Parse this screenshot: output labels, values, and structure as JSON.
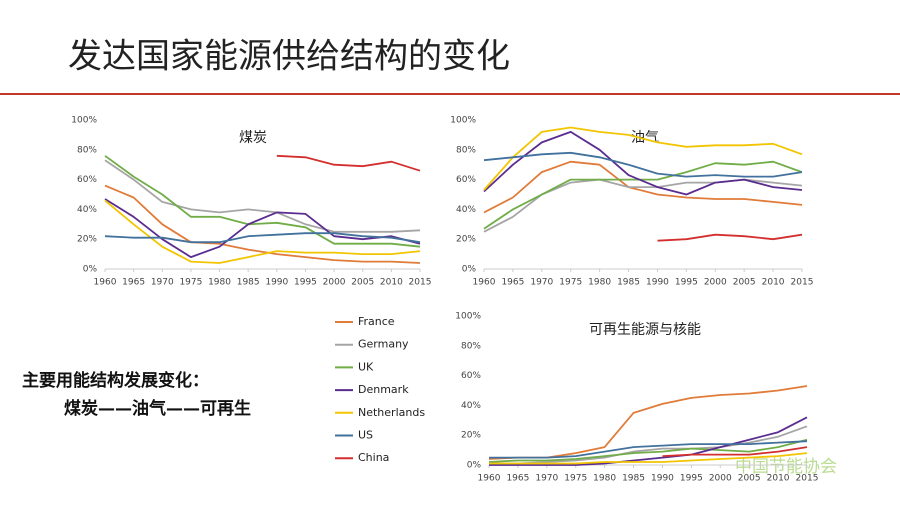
{
  "title": "发达国家能源供给结构的变化",
  "summary": [
    "主要用能结构发展变化：",
    "煤炭——油气——可再生"
  ],
  "watermark": "中国节能协会",
  "chart_data": [
    {
      "type": "line",
      "title": "煤炭",
      "x": [
        1960,
        1965,
        1970,
        1975,
        1980,
        1985,
        1990,
        1995,
        2000,
        2005,
        2010,
        2015
      ],
      "xlim": [
        1960,
        2015
      ],
      "xticks": [
        1960,
        1965,
        1970,
        1975,
        1980,
        1985,
        1990,
        1995,
        2000,
        2005,
        2010,
        2015
      ],
      "ylim": [
        0,
        100
      ],
      "yticks": [
        {
          "value": 0,
          "label": "0%"
        },
        {
          "value": 20,
          "label": "20%"
        },
        {
          "value": 40,
          "label": "40%"
        },
        {
          "value": 60,
          "label": "60%"
        },
        {
          "value": 80,
          "label": "80%"
        },
        {
          "value": 100,
          "label": "100%"
        }
      ],
      "grid": false,
      "series": [
        {
          "name": "France",
          "color": "#e07b39",
          "values": [
            56,
            48,
            30,
            18,
            17,
            13,
            10,
            8,
            6,
            5,
            5,
            4
          ]
        },
        {
          "name": "Germany",
          "color": "#a5a5a5",
          "values": [
            73,
            60,
            45,
            40,
            38,
            40,
            38,
            30,
            25,
            25,
            25,
            26
          ]
        },
        {
          "name": "UK",
          "color": "#70ad47",
          "values": [
            76,
            62,
            50,
            35,
            35,
            30,
            31,
            28,
            17,
            17,
            17,
            15
          ]
        },
        {
          "name": "Denmark",
          "color": "#5b2c8f",
          "values": [
            47,
            35,
            20,
            8,
            15,
            30,
            38,
            37,
            22,
            20,
            22,
            17
          ]
        },
        {
          "name": "Netherlands",
          "color": "#f2c500",
          "values": [
            46,
            30,
            15,
            5,
            4,
            8,
            12,
            11,
            11,
            10,
            10,
            12
          ]
        },
        {
          "name": "US",
          "color": "#41719c",
          "values": [
            22,
            21,
            21,
            18,
            18,
            22,
            23,
            24,
            24,
            22,
            21,
            18
          ]
        },
        {
          "name": "China",
          "color": "#d32f2f",
          "values": [
            null,
            null,
            null,
            null,
            null,
            null,
            76,
            75,
            70,
            69,
            72,
            66
          ]
        }
      ]
    },
    {
      "type": "line",
      "title": "油气",
      "x": [
        1960,
        1965,
        1970,
        1975,
        1980,
        1985,
        1990,
        1995,
        2000,
        2005,
        2010,
        2015
      ],
      "xlim": [
        1960,
        2015
      ],
      "xticks": [
        1960,
        1965,
        1970,
        1975,
        1980,
        1985,
        1990,
        1995,
        2000,
        2005,
        2010,
        2015
      ],
      "ylim": [
        0,
        100
      ],
      "yticks": [
        {
          "value": 0,
          "label": "0%"
        },
        {
          "value": 20,
          "label": "20%"
        },
        {
          "value": 40,
          "label": "40%"
        },
        {
          "value": 60,
          "label": "60%"
        },
        {
          "value": 80,
          "label": "80%"
        },
        {
          "value": 100,
          "label": "100%"
        }
      ],
      "grid": false,
      "series": [
        {
          "name": "France",
          "color": "#e07b39",
          "values": [
            38,
            48,
            65,
            72,
            70,
            55,
            50,
            48,
            47,
            47,
            45,
            43
          ]
        },
        {
          "name": "Germany",
          "color": "#a5a5a5",
          "values": [
            25,
            35,
            50,
            58,
            60,
            55,
            55,
            58,
            58,
            60,
            58,
            56
          ]
        },
        {
          "name": "UK",
          "color": "#70ad47",
          "values": [
            27,
            40,
            50,
            60,
            60,
            60,
            60,
            65,
            71,
            70,
            72,
            65
          ]
        },
        {
          "name": "Denmark",
          "color": "#5b2c8f",
          "values": [
            52,
            70,
            85,
            92,
            80,
            63,
            55,
            50,
            58,
            60,
            55,
            53
          ]
        },
        {
          "name": "Netherlands",
          "color": "#f2c500",
          "values": [
            53,
            75,
            92,
            95,
            92,
            90,
            85,
            82,
            83,
            83,
            84,
            77
          ]
        },
        {
          "name": "US",
          "color": "#41719c",
          "values": [
            73,
            75,
            77,
            78,
            75,
            70,
            64,
            62,
            63,
            62,
            62,
            65
          ]
        },
        {
          "name": "China",
          "color": "#d32f2f",
          "values": [
            null,
            null,
            null,
            null,
            null,
            null,
            19,
            20,
            23,
            22,
            20,
            23
          ]
        }
      ]
    },
    {
      "type": "line",
      "title": "可再生能源与核能",
      "x": [
        1960,
        1965,
        1970,
        1975,
        1980,
        1985,
        1990,
        1995,
        2000,
        2005,
        2010,
        2015
      ],
      "xlim": [
        1960,
        2015
      ],
      "xticks": [
        1960,
        1965,
        1970,
        1975,
        1980,
        1985,
        1990,
        1995,
        2000,
        2005,
        2010,
        2015
      ],
      "ylim": [
        0,
        100
      ],
      "yticks": [
        {
          "value": 0,
          "label": "0%"
        },
        {
          "value": 20,
          "label": "20%"
        },
        {
          "value": 40,
          "label": "40%"
        },
        {
          "value": 60,
          "label": "60%"
        },
        {
          "value": 80,
          "label": "80%"
        },
        {
          "value": 100,
          "label": "100%"
        }
      ],
      "grid": false,
      "series": [
        {
          "name": "France",
          "color": "#e07b39",
          "values": [
            4,
            5,
            5,
            8,
            12,
            35,
            41,
            45,
            47,
            48,
            50,
            53
          ]
        },
        {
          "name": "Germany",
          "color": "#a5a5a5",
          "values": [
            1,
            1,
            2,
            3,
            5,
            9,
            11,
            11,
            12,
            15,
            19,
            26
          ]
        },
        {
          "name": "UK",
          "color": "#70ad47",
          "values": [
            2,
            3,
            3,
            4,
            6,
            8,
            9,
            11,
            10,
            9,
            12,
            17
          ]
        },
        {
          "name": "Denmark",
          "color": "#5b2c8f",
          "values": [
            0,
            0,
            0,
            0,
            1,
            3,
            5,
            7,
            12,
            17,
            22,
            32
          ]
        },
        {
          "name": "Netherlands",
          "color": "#f2c500",
          "values": [
            1,
            1,
            1,
            1,
            2,
            2,
            2,
            3,
            4,
            5,
            6,
            8
          ]
        },
        {
          "name": "US",
          "color": "#41719c",
          "values": [
            5,
            5,
            5,
            6,
            9,
            12,
            13,
            14,
            14,
            14,
            15,
            16
          ]
        },
        {
          "name": "China",
          "color": "#d32f2f",
          "values": [
            null,
            null,
            null,
            null,
            null,
            null,
            6,
            7,
            7,
            7,
            9,
            12
          ]
        }
      ]
    }
  ]
}
